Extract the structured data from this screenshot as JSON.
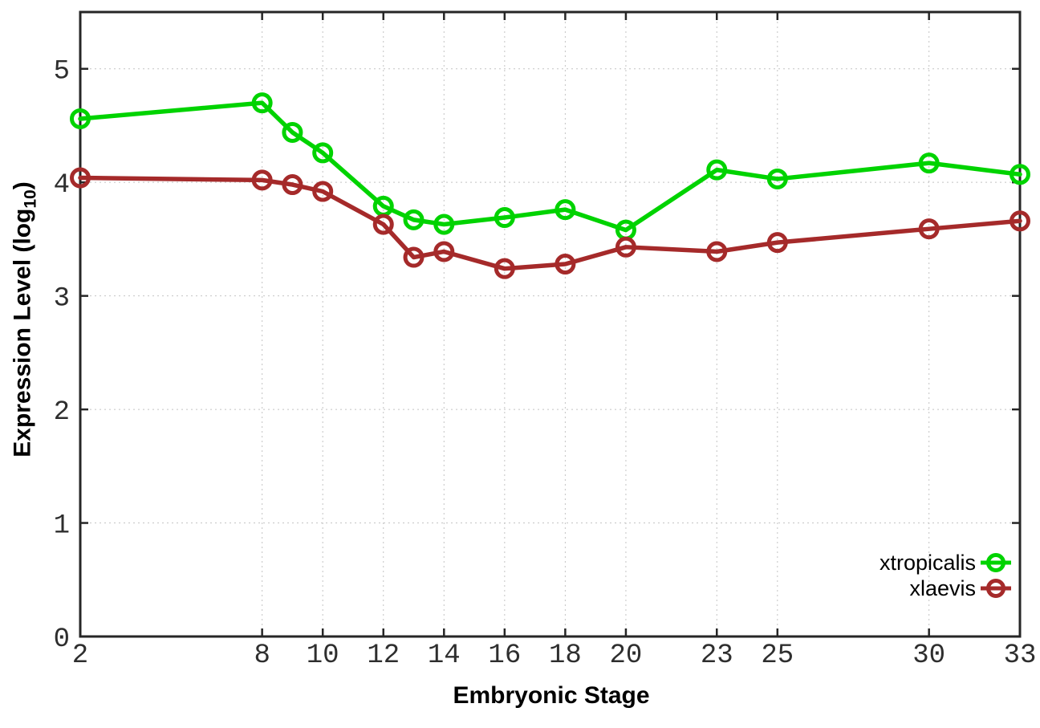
{
  "chart_data": {
    "type": "line",
    "xlabel": "Embryonic Stage",
    "ylabel": "Expression Level (log10)",
    "ylabel_parts": {
      "prefix": "Expression Level (log",
      "sub": "10",
      "suffix": ")"
    },
    "x": [
      2,
      8,
      9,
      10,
      12,
      13,
      14,
      16,
      18,
      20,
      23,
      25,
      30,
      33
    ],
    "series": [
      {
        "name": "xtropicalis",
        "color": "#00d300",
        "values": [
          4.56,
          4.7,
          4.44,
          4.26,
          3.79,
          3.67,
          3.63,
          3.69,
          3.76,
          3.58,
          4.11,
          4.03,
          4.17,
          4.07
        ]
      },
      {
        "name": "xlaevis",
        "color": "#a52a2a",
        "values": [
          4.04,
          4.02,
          3.98,
          3.92,
          3.63,
          3.34,
          3.39,
          3.24,
          3.28,
          3.43,
          3.39,
          3.47,
          3.59,
          3.66
        ]
      }
    ],
    "xticks": [
      2,
      8,
      10,
      12,
      14,
      16,
      18,
      20,
      23,
      25,
      30,
      33
    ],
    "yticks": [
      0,
      1,
      2,
      3,
      4,
      5
    ],
    "xlim": [
      2,
      33
    ],
    "ylim": [
      0,
      5.5
    ],
    "grid": true,
    "marker": "open-circle",
    "legend": {
      "position": "inside-right-bottom",
      "entries": [
        "xtropicalis",
        "xlaevis"
      ]
    },
    "colors": {
      "axis": "#262626",
      "grid": "#c4c4c4",
      "tick_label": "#2e2e2e",
      "background": "#ffffff"
    }
  }
}
